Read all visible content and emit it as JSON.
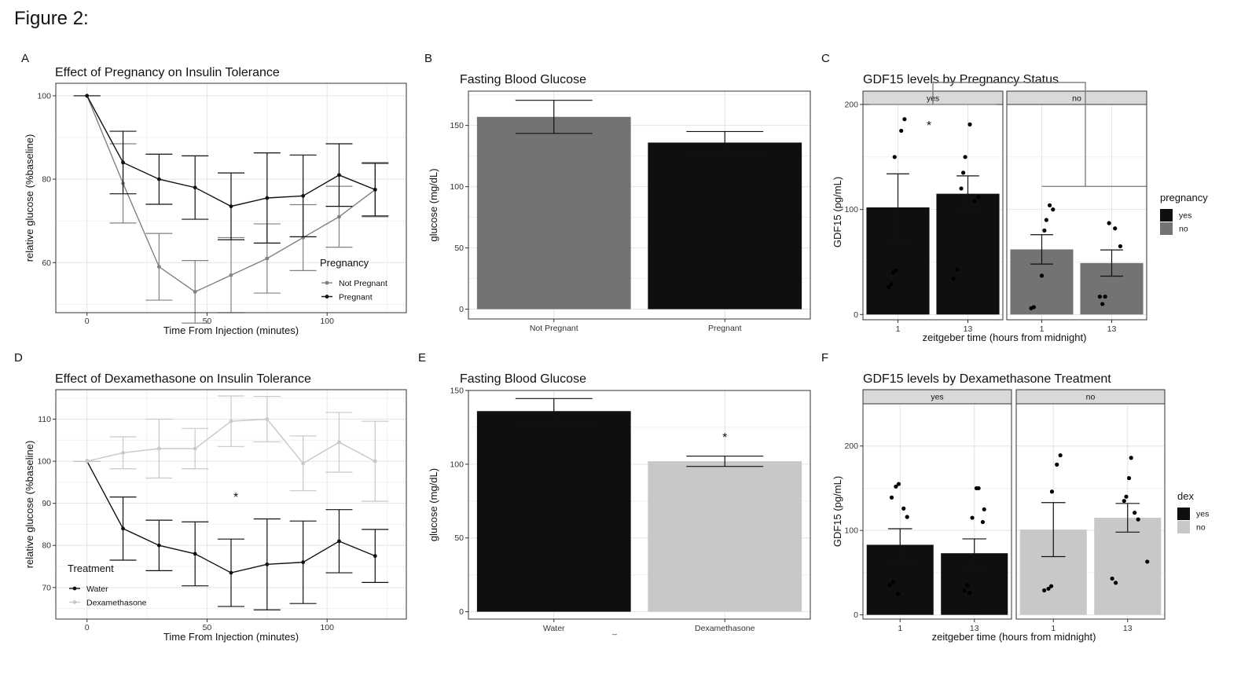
{
  "figure_title": "Figure 2:",
  "extra_mark": "_",
  "chart_data": [
    {
      "letter": "A",
      "type": "line",
      "title": "Effect of Pregnancy on Insulin Tolerance",
      "xlabel": "Time From Injection (minutes)",
      "ylabel": "relative glucose (%baseline)",
      "xlim": [
        -13,
        133
      ],
      "ylim": [
        48,
        103
      ],
      "xticks": [
        0,
        50,
        100
      ],
      "yticks": [
        60,
        80,
        100
      ],
      "legend": {
        "title": "Pregnancy",
        "position": "bottom-right",
        "items": [
          "Not Pregnant",
          "Pregnant"
        ]
      },
      "series": [
        {
          "name": "Not Pregnant",
          "color": "#808080",
          "x": [
            0,
            15,
            30,
            45,
            60,
            75,
            90,
            105,
            120
          ],
          "y": [
            100,
            79,
            59,
            53,
            57,
            61,
            66,
            71,
            77.5
          ],
          "err": [
            0,
            9.5,
            8,
            7.5,
            9,
            8.3,
            7.9,
            7.3,
            6.5
          ]
        },
        {
          "name": "Pregnant",
          "color": "#111111",
          "x": [
            0,
            15,
            30,
            45,
            60,
            75,
            90,
            105,
            120
          ],
          "y": [
            100,
            84,
            80,
            78,
            73.5,
            75.5,
            76,
            81,
            77.5
          ],
          "err": [
            0,
            7.5,
            6,
            7.6,
            8,
            10.8,
            9.8,
            7.5,
            6.3
          ]
        }
      ],
      "annotations": []
    },
    {
      "letter": "B",
      "type": "bar",
      "title": "Fasting Blood Glucose",
      "xlabel": "",
      "ylabel": "glucose (mg/dL)",
      "ylim": [
        -8,
        178
      ],
      "yticks": [
        0,
        50,
        100,
        150
      ],
      "categories": [
        "Not Pregnant",
        "Pregnant"
      ],
      "values": [
        157,
        136
      ],
      "err": [
        13.5,
        9
      ],
      "colors": [
        "#737373",
        "#0f0f0f"
      ],
      "annotations": []
    },
    {
      "letter": "C",
      "type": "bar",
      "title": "GDF15 levels by Pregnancy Status",
      "xlabel": "zeitgeber time (hours from midnight)",
      "ylabel": "GDF15 (pg/mL)",
      "ylim": [
        -5,
        200
      ],
      "yticks": [
        0,
        100,
        200
      ],
      "facets": [
        "yes",
        "no"
      ],
      "categories": [
        "1",
        "13"
      ],
      "legend": {
        "title": "pregnancy",
        "position": "right",
        "items": [
          "yes",
          "no"
        ],
        "colors": [
          "#0f0f0f",
          "#737373"
        ]
      },
      "series": [
        {
          "facet": "yes",
          "color": "#0f0f0f",
          "values": [
            102,
            115
          ],
          "err": [
            32,
            17
          ],
          "points": [
            [
              [
                0.93,
                40
              ],
              [
                0.97,
                42
              ],
              [
                0.9,
                29
              ],
              [
                0.86,
                26
              ],
              [
                1.05,
                175
              ],
              [
                1.1,
                186
              ],
              [
                0.95,
                150
              ]
            ],
            [
              [
                0.78,
                34
              ],
              [
                0.84,
                43
              ],
              [
                0.9,
                120
              ],
              [
                0.93,
                135
              ],
              [
                0.96,
                150
              ],
              [
                1.03,
                181
              ],
              [
                1.1,
                108
              ],
              [
                1.16,
                112
              ]
            ]
          ]
        },
        {
          "facet": "no",
          "color": "#737373",
          "values": [
            62,
            49
          ],
          "err": [
            14,
            12.5
          ],
          "points": [
            [
              [
                0.84,
                6
              ],
              [
                0.88,
                7
              ],
              [
                1.0,
                37
              ],
              [
                1.04,
                80
              ],
              [
                1.07,
                90
              ],
              [
                1.12,
                104
              ],
              [
                1.17,
                100
              ]
            ],
            [
              [
                0.82,
                17
              ],
              [
                0.86,
                10
              ],
              [
                0.9,
                17
              ],
              [
                0.96,
                87
              ],
              [
                1.05,
                82
              ],
              [
                1.13,
                65
              ]
            ]
          ]
        }
      ],
      "annotations": [
        {
          "text": "*"
        }
      ]
    },
    {
      "letter": "D",
      "type": "line",
      "title": "Effect of Dexamethasone on Insulin Tolerance",
      "xlabel": "Time From Injection (minutes)",
      "ylabel": "relative glucose (%baseline)",
      "xlim": [
        -13,
        133
      ],
      "ylim": [
        62.5,
        117
      ],
      "xticks": [
        0,
        50,
        100
      ],
      "yticks": [
        70,
        80,
        90,
        100,
        110
      ],
      "legend": {
        "title": "Treatment",
        "position": "bottom-left",
        "items": [
          "Water",
          "Dexamethasone"
        ]
      },
      "series": [
        {
          "name": "Water",
          "color": "#111111",
          "x": [
            0,
            15,
            30,
            45,
            60,
            75,
            90,
            105,
            120
          ],
          "y": [
            100,
            84,
            80,
            78,
            73.5,
            75.5,
            76,
            81,
            77.5
          ],
          "err": [
            0,
            7.5,
            6,
            7.6,
            8,
            10.8,
            9.8,
            7.5,
            6.3
          ]
        },
        {
          "name": "Dexamethasone",
          "color": "#c8c8c8",
          "x": [
            0,
            15,
            30,
            45,
            60,
            75,
            90,
            105,
            120
          ],
          "y": [
            100,
            102,
            103,
            103,
            109.5,
            110,
            99.5,
            104.5,
            100
          ],
          "err": [
            0,
            3.8,
            7,
            4.8,
            6,
            5.4,
            6.5,
            7.1,
            9.5
          ]
        }
      ],
      "annotations": [
        {
          "text": "*"
        }
      ]
    },
    {
      "letter": "E",
      "type": "bar",
      "title": "Fasting Blood Glucose",
      "xlabel": "",
      "ylabel": "glucose (mg/dL)",
      "ylim": [
        -5,
        150
      ],
      "yticks": [
        0,
        50,
        100,
        150
      ],
      "categories": [
        "Water",
        "Dexamethasone"
      ],
      "values": [
        136,
        102
      ],
      "err": [
        8.5,
        3.5
      ],
      "colors": [
        "#0f0f0f",
        "#c8c8c8"
      ],
      "annotations": [
        {
          "text": "*"
        }
      ]
    },
    {
      "letter": "F",
      "type": "bar",
      "title": "GDF15 levels by Dexamethasone Treatment",
      "xlabel": "zeitgeber time (hours from midnight)",
      "ylabel": "GDF15 (pg/mL)",
      "ylim": [
        -5,
        250
      ],
      "yticks": [
        0,
        100,
        200
      ],
      "facets": [
        "yes",
        "no"
      ],
      "categories": [
        "1",
        "13"
      ],
      "legend": {
        "title": "dex",
        "position": "right",
        "items": [
          "yes",
          "no"
        ],
        "colors": [
          "#0f0f0f",
          "#c8c8c8"
        ]
      },
      "series": [
        {
          "facet": "yes",
          "color": "#0f0f0f",
          "values": [
            83,
            73
          ],
          "err": [
            19,
            17
          ],
          "points": [
            [
              [
                0.85,
                35
              ],
              [
                0.9,
                39
              ],
              [
                0.97,
                25
              ],
              [
                0.88,
                139
              ],
              [
                0.94,
                152
              ],
              [
                0.98,
                155
              ],
              [
                1.05,
                126
              ],
              [
                1.1,
                116
              ]
            ],
            [
              [
                0.86,
                29
              ],
              [
                0.9,
                35
              ],
              [
                0.93,
                26
              ],
              [
                0.97,
                115
              ],
              [
                1.03,
                150
              ],
              [
                1.06,
                150
              ],
              [
                1.12,
                110
              ],
              [
                1.14,
                125
              ]
            ]
          ]
        },
        {
          "facet": "no",
          "color": "#c8c8c8",
          "values": [
            101,
            115
          ],
          "err": [
            32,
            17
          ],
          "points": [
            [
              [
                0.87,
                29
              ],
              [
                0.93,
                31
              ],
              [
                0.97,
                34
              ],
              [
                0.98,
                146
              ],
              [
                1.05,
                178
              ],
              [
                1.1,
                189
              ]
            ],
            [
              [
                0.78,
                43
              ],
              [
                0.83,
                38
              ],
              [
                0.95,
                135
              ],
              [
                0.98,
                140
              ],
              [
                1.02,
                162
              ],
              [
                1.05,
                186
              ],
              [
                1.1,
                121
              ],
              [
                1.15,
                113
              ],
              [
                1.28,
                63
              ]
            ]
          ]
        }
      ],
      "annotations": []
    }
  ]
}
